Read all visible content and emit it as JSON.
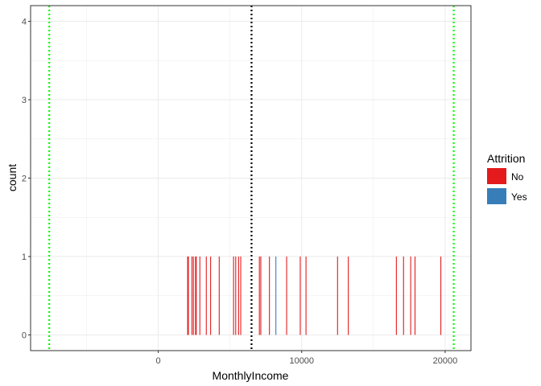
{
  "chart_data": {
    "type": "bar",
    "xlabel": "MonthlyIncome",
    "ylabel": "count",
    "xlim": [
      -8900,
      21800
    ],
    "ylim": [
      -0.2,
      4.2
    ],
    "x_ticks": [
      0,
      10000,
      20000
    ],
    "x_tick_labels": [
      "0",
      "10000",
      "20000"
    ],
    "y_ticks": [
      0,
      1,
      2,
      3,
      4
    ],
    "y_tick_labels": [
      "0",
      "1",
      "2",
      "3",
      "4"
    ],
    "grid": true,
    "legend": {
      "title": "Attrition",
      "position": "right",
      "entries": [
        {
          "label": "No",
          "color": "#E41A1C"
        },
        {
          "label": "Yes",
          "color": "#377EB8"
        }
      ]
    },
    "series": [
      {
        "name": "No",
        "color": "#E41A1C",
        "x": [
          2050,
          2100,
          2350,
          2450,
          2600,
          2650,
          2900,
          3350,
          3650,
          4250,
          5250,
          5400,
          5600,
          5750,
          7050,
          7150,
          7750,
          8950,
          9900,
          10300,
          12500,
          13250,
          16600,
          17100,
          17600,
          17900,
          19700
        ],
        "count": [
          1,
          1,
          1,
          1,
          1,
          1,
          1,
          1,
          1,
          1,
          1,
          1,
          1,
          1,
          1,
          1,
          1,
          1,
          1,
          1,
          1,
          1,
          1,
          1,
          1,
          1,
          1
        ]
      },
      {
        "name": "Yes",
        "color": "#377EB8",
        "x": [
          8200
        ],
        "count": [
          1
        ]
      }
    ],
    "vlines": [
      {
        "x": 6503,
        "color": "#000000",
        "style": "dotted"
      },
      {
        "x": -7600,
        "color": "#00FF00",
        "style": "dotted"
      },
      {
        "x": 20600,
        "color": "#00FF00",
        "style": "dotted"
      }
    ]
  }
}
